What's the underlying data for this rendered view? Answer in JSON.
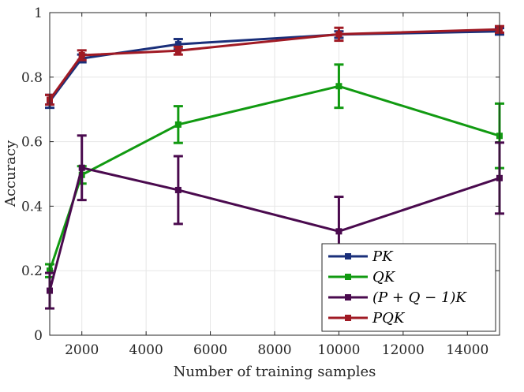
{
  "chart_data": {
    "type": "line",
    "xlabel": "Number of training samples",
    "ylabel": "Accuracy",
    "xlim": [
      1000,
      15000
    ],
    "ylim": [
      0,
      1
    ],
    "xticks": [
      2000,
      4000,
      6000,
      8000,
      10000,
      12000,
      14000
    ],
    "yticks": [
      0,
      0.2,
      0.4,
      0.6,
      0.8,
      1
    ],
    "xtick_labels": [
      "2000",
      "4000",
      "6000",
      "8000",
      "10000",
      "12000",
      "14000"
    ],
    "ytick_labels": [
      "0",
      "0.2",
      "0.4",
      "0.6",
      "0.8",
      "1"
    ],
    "grid": true,
    "legend_position": "bottom-right",
    "x": [
      1000,
      2000,
      5000,
      10000,
      15000
    ],
    "series": [
      {
        "name": "PK",
        "color": "#1a2f7a",
        "values": [
          0.725,
          0.858,
          0.902,
          0.932,
          0.942
        ],
        "errors": [
          0.02,
          0.012,
          0.016,
          0.01,
          0.01
        ]
      },
      {
        "name": "QK",
        "color": "#119a11",
        "values": [
          0.2,
          0.497,
          0.653,
          0.772,
          0.618
        ],
        "errors": [
          0.02,
          0.027,
          0.057,
          0.067,
          0.1
        ]
      },
      {
        "name": "(P + Q − 1)K",
        "color": "#4a0a4e",
        "values": [
          0.138,
          0.519,
          0.45,
          0.322,
          0.487
        ],
        "errors": [
          0.055,
          0.1,
          0.105,
          0.107,
          0.11
        ]
      },
      {
        "name": "PQK",
        "color": "#a01a24",
        "values": [
          0.73,
          0.868,
          0.882,
          0.933,
          0.948
        ],
        "errors": [
          0.015,
          0.015,
          0.012,
          0.02,
          0.01
        ]
      }
    ]
  }
}
